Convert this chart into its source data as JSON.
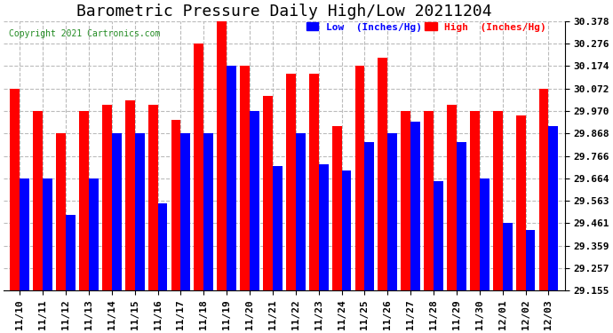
{
  "title": "Barometric Pressure Daily High/Low 20211204",
  "copyright": "Copyright 2021 Cartronics.com",
  "legend_low": "Low  (Inches/Hg)",
  "legend_high": "High  (Inches/Hg)",
  "dates": [
    "11/10",
    "11/11",
    "11/12",
    "11/13",
    "11/14",
    "11/15",
    "11/16",
    "11/17",
    "11/18",
    "11/19",
    "11/20",
    "11/21",
    "11/22",
    "11/23",
    "11/24",
    "11/25",
    "11/26",
    "11/27",
    "11/28",
    "11/29",
    "11/30",
    "12/01",
    "12/02",
    "12/03"
  ],
  "high": [
    30.072,
    29.97,
    29.868,
    29.97,
    30.0,
    30.02,
    30.0,
    29.93,
    30.276,
    30.378,
    30.174,
    30.04,
    30.14,
    30.14,
    29.9,
    30.174,
    30.21,
    29.97,
    29.97,
    30.0,
    29.97,
    29.97,
    29.95,
    30.072
  ],
  "low": [
    29.664,
    29.664,
    29.5,
    29.664,
    29.868,
    29.868,
    29.55,
    29.868,
    29.868,
    30.174,
    29.97,
    29.72,
    29.868,
    29.73,
    29.7,
    29.83,
    29.868,
    29.92,
    29.65,
    29.83,
    29.664,
    29.461,
    29.43,
    29.9
  ],
  "ylim_min": 29.155,
  "ylim_max": 30.378,
  "yticks": [
    29.155,
    29.257,
    29.359,
    29.461,
    29.563,
    29.664,
    29.766,
    29.868,
    29.97,
    30.072,
    30.174,
    30.276,
    30.378
  ],
  "bar_width": 0.42,
  "high_color": "#ff0000",
  "low_color": "#0000ff",
  "background_color": "#ffffff",
  "grid_color": "#bbbbbb",
  "title_fontsize": 13,
  "tick_fontsize": 8,
  "copyright_color": "#228B22"
}
